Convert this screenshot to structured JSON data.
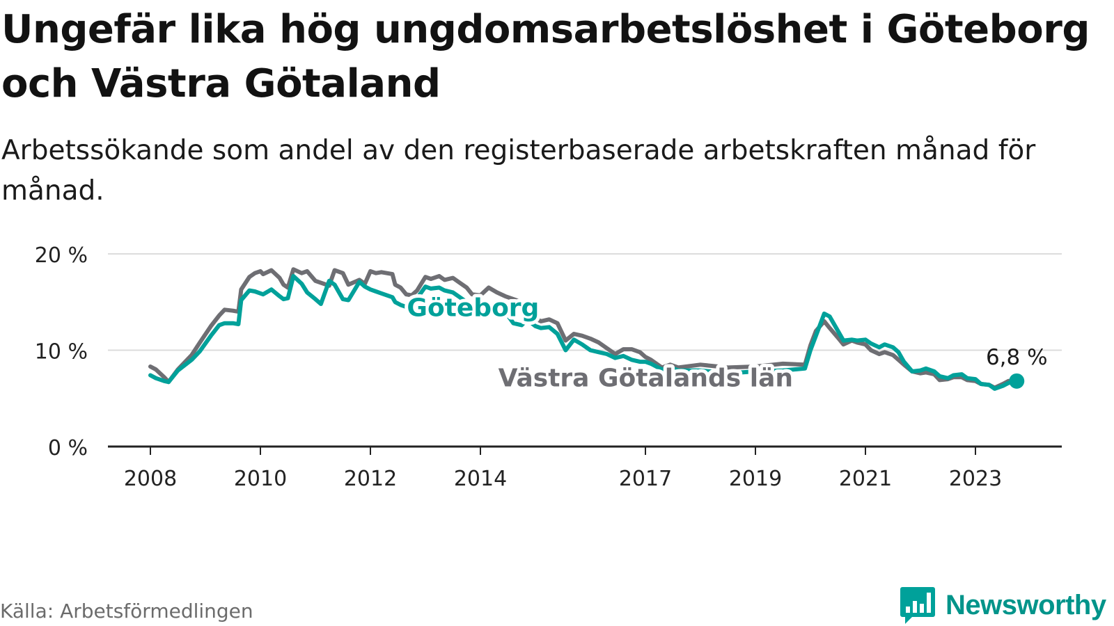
{
  "title": "Ungefär lika hög ungdomsarbetslöshet i Göteborg och Västra Götaland",
  "subtitle": "Arbetssökande som andel av den registerbaserade arbetskraften månad för månad.",
  "source": "Källa: Arbetsförmedlingen",
  "brand": {
    "name": "Newsworthy",
    "icon": "bar-chart-bubble-icon"
  },
  "colors": {
    "goteborg": "#00a19a",
    "vastra_gotaland": "#6e6e73",
    "grid": "#dcdcdc",
    "axis": "#222222",
    "text": "#121212"
  },
  "chart_data": {
    "type": "line",
    "ylim": [
      0,
      20
    ],
    "yticks": [
      {
        "value": 0,
        "label": "0 %"
      },
      {
        "value": 10,
        "label": "10 %"
      },
      {
        "value": 20,
        "label": "20 %"
      }
    ],
    "xticks": [
      {
        "value": 2008,
        "label": "2008"
      },
      {
        "value": 2010,
        "label": "2010"
      },
      {
        "value": 2012,
        "label": "2012"
      },
      {
        "value": 2014,
        "label": "2014"
      },
      {
        "value": 2017,
        "label": "2017"
      },
      {
        "value": 2019,
        "label": "2019"
      },
      {
        "value": 2021,
        "label": "2021"
      },
      {
        "value": 2023,
        "label": "2023"
      }
    ],
    "grid": true,
    "series": [
      {
        "name": "Västra Götalands län",
        "color": "#6e6e73",
        "x": [
          2008.0,
          2008.1,
          2008.25,
          2008.33,
          2008.5,
          2008.75,
          2008.9,
          2009.1,
          2009.25,
          2009.35,
          2009.5,
          2009.6,
          2009.65,
          2009.8,
          2009.9,
          2010.0,
          2010.05,
          2010.2,
          2010.35,
          2010.42,
          2010.5,
          2010.6,
          2010.75,
          2010.85,
          2011.0,
          2011.1,
          2011.25,
          2011.35,
          2011.5,
          2011.6,
          2011.8,
          2011.9,
          2012.0,
          2012.1,
          2012.2,
          2012.3,
          2012.4,
          2012.45,
          2012.55,
          2012.65,
          2012.75,
          2012.85,
          2013.0,
          2013.1,
          2013.25,
          2013.35,
          2013.5,
          2013.6,
          2013.75,
          2013.85,
          2014.0,
          2014.15,
          2014.3,
          2014.45,
          2014.6,
          2014.75,
          2014.85,
          2015.0,
          2015.1,
          2015.25,
          2015.4,
          2015.55,
          2015.7,
          2015.85,
          2016.0,
          2016.15,
          2016.3,
          2016.45,
          2016.6,
          2016.75,
          2016.9,
          2017.0,
          2017.1,
          2017.3,
          2017.45,
          2017.6,
          2018.0,
          2018.5,
          2019.0,
          2019.5,
          2019.9,
          2020.0,
          2020.1,
          2020.25,
          2020.35,
          2020.5,
          2020.6,
          2020.75,
          2020.85,
          2021.0,
          2021.1,
          2021.25,
          2021.35,
          2021.5,
          2021.6,
          2021.7,
          2021.85,
          2022.0,
          2022.1,
          2022.25,
          2022.35,
          2022.5,
          2022.6,
          2022.75,
          2022.85,
          2023.0,
          2023.1,
          2023.25,
          2023.35,
          2023.5,
          2023.6,
          2023.75
        ],
        "y": [
          8.3,
          8.0,
          7.2,
          6.7,
          8.0,
          9.5,
          10.8,
          12.5,
          13.6,
          14.2,
          14.1,
          14.0,
          16.3,
          17.6,
          18.0,
          18.2,
          17.9,
          18.3,
          17.5,
          16.8,
          16.5,
          18.4,
          18.0,
          18.2,
          17.2,
          17.0,
          16.7,
          18.3,
          18.0,
          16.8,
          17.3,
          16.9,
          18.2,
          18.0,
          18.1,
          18.0,
          17.9,
          16.8,
          16.5,
          15.8,
          15.7,
          16.2,
          17.6,
          17.4,
          17.7,
          17.3,
          17.5,
          17.1,
          16.5,
          15.8,
          15.7,
          16.5,
          16.0,
          15.6,
          15.3,
          15.0,
          14.0,
          13.3,
          13.0,
          13.2,
          12.8,
          11.0,
          11.7,
          11.5,
          11.2,
          10.8,
          10.2,
          9.6,
          10.1,
          10.1,
          9.8,
          9.3,
          9.0,
          8.2,
          8.5,
          8.2,
          8.5,
          8.2,
          8.3,
          8.6,
          8.5,
          10.5,
          12.0,
          13.0,
          12.3,
          11.3,
          10.6,
          11.0,
          10.8,
          10.6,
          10.0,
          9.6,
          9.8,
          9.5,
          9.0,
          8.5,
          7.8,
          7.6,
          7.7,
          7.5,
          6.9,
          7.0,
          7.2,
          7.2,
          6.9,
          6.8,
          6.5,
          6.4,
          6.1,
          6.5,
          6.8,
          6.8
        ]
      },
      {
        "name": "Göteborg",
        "color": "#00a19a",
        "x": [
          2008.0,
          2008.1,
          2008.25,
          2008.33,
          2008.5,
          2008.75,
          2008.9,
          2009.1,
          2009.25,
          2009.35,
          2009.5,
          2009.6,
          2009.65,
          2009.8,
          2009.9,
          2010.0,
          2010.05,
          2010.2,
          2010.35,
          2010.42,
          2010.5,
          2010.6,
          2010.75,
          2010.85,
          2011.0,
          2011.1,
          2011.25,
          2011.35,
          2011.5,
          2011.6,
          2011.8,
          2011.9,
          2012.0,
          2012.1,
          2012.2,
          2012.3,
          2012.4,
          2012.45,
          2012.55,
          2012.65,
          2012.75,
          2012.85,
          2013.0,
          2013.1,
          2013.25,
          2013.35,
          2013.5,
          2013.6,
          2013.75,
          2013.85,
          2014.0,
          2014.15,
          2014.3,
          2014.45,
          2014.6,
          2014.75,
          2014.85,
          2015.0,
          2015.1,
          2015.25,
          2015.4,
          2015.55,
          2015.7,
          2015.85,
          2016.0,
          2016.15,
          2016.3,
          2016.45,
          2016.6,
          2016.75,
          2016.9,
          2017.0,
          2017.1,
          2017.3,
          2017.45,
          2017.6,
          2018.0,
          2018.5,
          2019.0,
          2019.5,
          2019.9,
          2020.0,
          2020.1,
          2020.25,
          2020.35,
          2020.5,
          2020.6,
          2020.75,
          2020.85,
          2021.0,
          2021.1,
          2021.25,
          2021.35,
          2021.5,
          2021.6,
          2021.7,
          2021.85,
          2022.0,
          2022.1,
          2022.25,
          2022.35,
          2022.5,
          2022.6,
          2022.75,
          2022.85,
          2023.0,
          2023.1,
          2023.25,
          2023.35,
          2023.5,
          2023.6,
          2023.75
        ],
        "y": [
          7.4,
          7.1,
          6.8,
          6.7,
          7.9,
          9.0,
          9.9,
          11.5,
          12.6,
          12.8,
          12.8,
          12.7,
          15.2,
          16.2,
          16.1,
          15.9,
          15.8,
          16.3,
          15.6,
          15.3,
          15.4,
          17.7,
          16.9,
          16.0,
          15.3,
          14.8,
          17.2,
          16.8,
          15.3,
          15.2,
          17.1,
          16.6,
          16.3,
          16.1,
          15.9,
          15.7,
          15.5,
          15.0,
          14.7,
          14.5,
          14.3,
          15.4,
          16.6,
          16.4,
          16.5,
          16.2,
          16.0,
          15.6,
          15.0,
          14.3,
          13.6,
          14.0,
          14.5,
          14.0,
          12.8,
          12.6,
          13.2,
          12.5,
          12.3,
          12.4,
          11.7,
          10.0,
          11.1,
          10.6,
          10.0,
          9.8,
          9.6,
          9.2,
          9.4,
          9.0,
          8.8,
          8.8,
          8.6,
          8.0,
          8.2,
          7.9,
          7.9,
          7.6,
          7.8,
          7.9,
          8.1,
          10.0,
          11.5,
          13.8,
          13.5,
          12.0,
          11.0,
          11.1,
          11.0,
          11.1,
          10.7,
          10.3,
          10.6,
          10.3,
          9.8,
          8.8,
          7.8,
          7.9,
          8.1,
          7.8,
          7.3,
          7.1,
          7.4,
          7.5,
          7.1,
          7.0,
          6.5,
          6.4,
          6.0,
          6.3,
          6.6,
          6.8
        ]
      }
    ],
    "annotations": [
      {
        "text": "Göteborg",
        "x": 2013.6,
        "y": 14.4,
        "series": "Göteborg"
      },
      {
        "text": "Västra Götalands län",
        "x": 2017.4,
        "y": 7.1,
        "series": "Västra Götalands län"
      },
      {
        "text": "6,8 %",
        "x": 2023.75,
        "y": 9.4,
        "series": "Göteborg"
      }
    ]
  }
}
